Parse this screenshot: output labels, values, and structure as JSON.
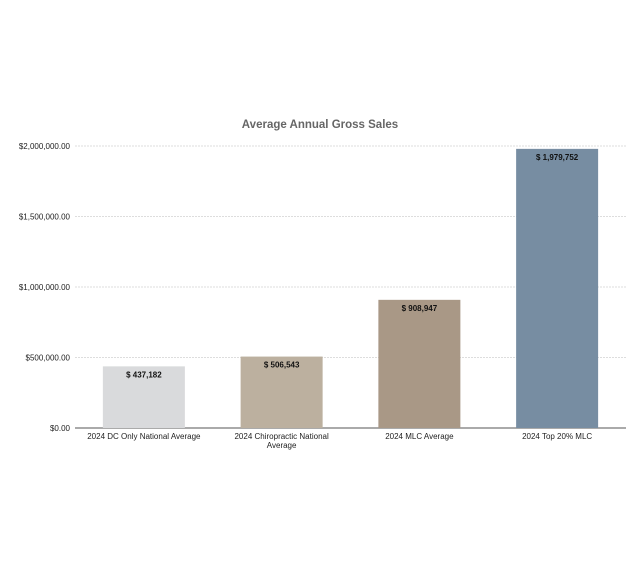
{
  "chart_data": {
    "type": "bar",
    "title": "Average Annual Gross Sales",
    "xlabel": "",
    "ylabel": "",
    "ylim": [
      0,
      2000000
    ],
    "grid": true,
    "y_ticks": [
      0,
      500000,
      1000000,
      1500000,
      2000000
    ],
    "y_tick_labels": [
      "$0.00",
      "$500,000.00",
      "$1,000,000.00",
      "$1,500,000.00",
      "$2,000,000.00"
    ],
    "categories": [
      [
        "2024 DC Only National Average"
      ],
      [
        "2024 Chiropractic National",
        "Average"
      ],
      [
        "2024 MLC Average"
      ],
      [
        "2024 Top 20% MLC"
      ]
    ],
    "values": [
      437182,
      506543,
      908947,
      1979752
    ],
    "data_labels": [
      "$ 437,182",
      "$ 506,543",
      "$ 908,947",
      "$ 1,979,752"
    ],
    "colors": [
      "#d9dadc",
      "#bcb09f",
      "#a99886",
      "#778da2"
    ]
  }
}
